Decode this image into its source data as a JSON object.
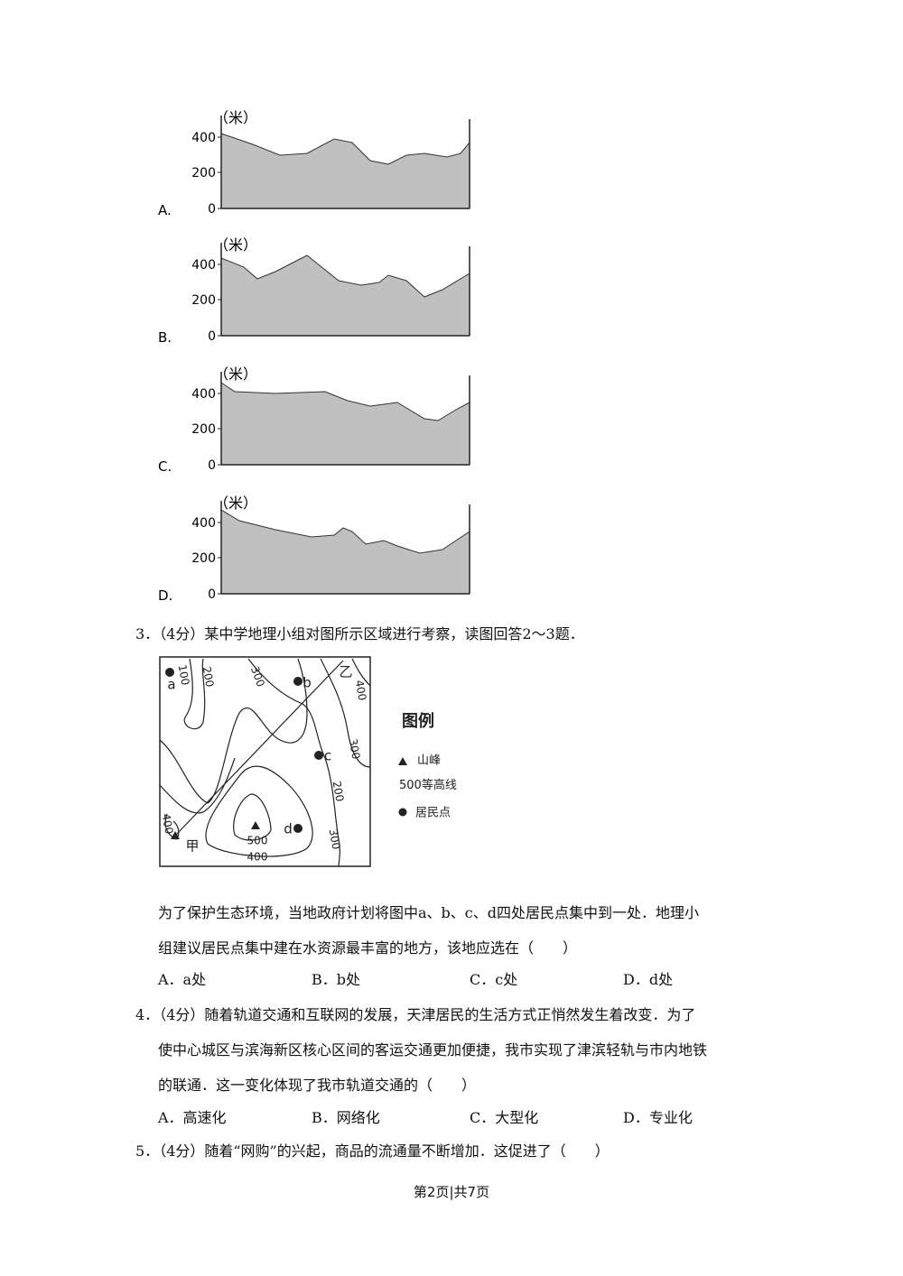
{
  "profiles": [
    {
      "option": "A.",
      "unit": "（米）",
      "ticks": [
        400,
        200,
        0
      ]
    },
    {
      "option": "B.",
      "unit": "（米）",
      "ticks": [
        400,
        200,
        0
      ]
    },
    {
      "option": "C.",
      "unit": "（米）",
      "ticks": [
        400,
        200,
        0
      ]
    },
    {
      "option": "D.",
      "unit": "（米）",
      "ticks": [
        400,
        200,
        0
      ]
    }
  ],
  "q3": {
    "number": "3．",
    "score": "（4分）",
    "text": "某中学地理小组对图所示区域进行考察，读图回答2～3题．",
    "map": {
      "contours": [
        100,
        200,
        300,
        400,
        300,
        200,
        300,
        400,
        500,
        400
      ],
      "points": [
        "a",
        "b",
        "c",
        "d",
        "甲",
        "乙"
      ],
      "legend": {
        "title": "图例",
        "peak": "山峰",
        "contour_value": 500,
        "contour": "等高线",
        "settlement": "居民点"
      }
    },
    "lines": [
      "为了保护生态环境，当地政府计划将图中a、b、c、d四处居民点集中到一处．地理小",
      "组建议居民点集中建在水资源最丰富的地方，该地应选在（　　）"
    ],
    "options": [
      "A．a处",
      "B．b处",
      "C．c处",
      "D．d处"
    ]
  },
  "q4": {
    "number": "4．",
    "score": "（4分）",
    "lines": [
      "随着轨道交通和互联网的发展，天津居民的生活方式正悄然发生着改变．为了",
      "使中心城区与滨海新区核心区间的客运交通更加便捷，我市实现了津滨轻轨与市内地铁",
      "的联通．这一变化体现了我市轨道交通的（　　）"
    ],
    "options": [
      "A．高速化",
      "B．网络化",
      "C．大型化",
      "D．专业化"
    ]
  },
  "q5": {
    "number": "5．",
    "score": "（4分）",
    "text": "随着“网购”的兴起，商品的流通量不断增加．这促进了（　　）"
  },
  "footer": "第2页|共7页"
}
